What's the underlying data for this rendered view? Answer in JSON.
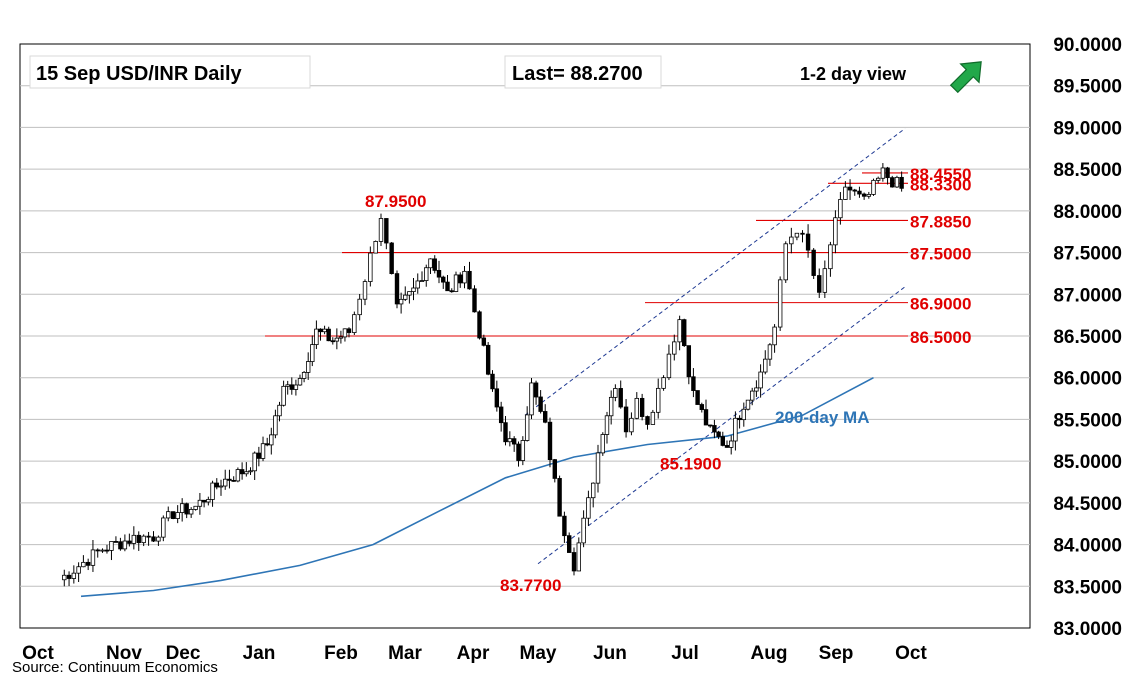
{
  "chart_data": {
    "type": "candlestick",
    "title": "15 Sep  USD/INR  Daily",
    "last_label": "Last= 88.2700",
    "view_label": "1-2 day view",
    "view_direction_icon": "arrow-up-right-icon",
    "source": "Source: Continuum Economics",
    "ylim": [
      83.0,
      90.0
    ],
    "y_ticks": [
      "83.0000",
      "83.5000",
      "84.0000",
      "84.5000",
      "85.0000",
      "85.5000",
      "86.0000",
      "86.5000",
      "87.0000",
      "87.5000",
      "88.0000",
      "88.5000",
      "89.0000",
      "89.5000",
      "90.0000"
    ],
    "x_ticks": [
      "Oct",
      "Nov",
      "Dec",
      "Jan",
      "Feb",
      "Mar",
      "Apr",
      "May",
      "Jun",
      "Jul",
      "Aug",
      "Sep",
      "Oct"
    ],
    "grid": true,
    "levels": [
      {
        "label": "88.4550",
        "value": 88.455
      },
      {
        "label": "88.3300",
        "value": 88.33
      },
      {
        "label": "87.8850",
        "value": 87.885
      },
      {
        "label": "87.5000",
        "value": 87.5
      },
      {
        "label": "86.9000",
        "value": 86.9
      },
      {
        "label": "86.5000",
        "value": 86.5
      }
    ],
    "annotations": [
      {
        "label": "87.9500",
        "value": 87.95
      },
      {
        "label": "85.1900",
        "value": 85.19
      },
      {
        "label": "83.7700",
        "value": 83.77
      }
    ],
    "ma_label": "200-day MA",
    "colors": {
      "up": "#ffffff",
      "down": "#000000",
      "level": "#e00000",
      "ma": "#2e75b6",
      "channel": "#1f3a93",
      "arrow": "#22a84a"
    },
    "anchors": [
      [
        "Oct",
        83.58
      ],
      [
        "Oct",
        83.95
      ],
      [
        "Nov",
        84.08
      ],
      [
        "Nov",
        84.1
      ],
      [
        "Nov",
        84.38
      ],
      [
        "Dec",
        84.45
      ],
      [
        "Dec",
        84.75
      ],
      [
        "Dec",
        84.9
      ],
      [
        "Jan",
        85.2
      ],
      [
        "Jan",
        85.85
      ],
      [
        "Jan",
        86.0
      ],
      [
        "Jan",
        86.55
      ],
      [
        "Jan",
        86.45
      ],
      [
        "Feb",
        86.55
      ],
      [
        "Feb",
        87.2
      ],
      [
        "Feb",
        87.95
      ],
      [
        "Feb",
        86.8
      ],
      [
        "Mar",
        87.05
      ],
      [
        "Mar",
        87.45
      ],
      [
        "Mar",
        87.0
      ],
      [
        "Mar",
        87.3
      ],
      [
        "Apr",
        86.55
      ],
      [
        "Apr",
        85.8
      ],
      [
        "Apr",
        85.3
      ],
      [
        "Apr",
        85.05
      ],
      [
        "Apr",
        85.9
      ],
      [
        "May",
        85.4
      ],
      [
        "May",
        84.4
      ],
      [
        "May",
        83.77
      ],
      [
        "May",
        84.5
      ],
      [
        "May",
        85.4
      ],
      [
        "Jun",
        85.95
      ],
      [
        "Jun",
        85.4
      ],
      [
        "Jun",
        85.7
      ],
      [
        "Jun",
        85.5
      ],
      [
        "Jun",
        85.85
      ],
      [
        "Jun",
        86.3
      ],
      [
        "Jun",
        86.7
      ],
      [
        "Jul",
        85.8
      ],
      [
        "Jul",
        85.35
      ],
      [
        "Jul",
        85.19
      ],
      [
        "Jul",
        85.7
      ],
      [
        "Jul",
        86.05
      ],
      [
        "Aug",
        86.6
      ],
      [
        "Aug",
        87.6
      ],
      [
        "Aug",
        87.8
      ],
      [
        "Aug",
        87.5
      ],
      [
        "Aug",
        86.95
      ],
      [
        "Aug",
        87.6
      ],
      [
        "Sep",
        88.3
      ],
      [
        "Sep",
        88.1
      ],
      [
        "Sep",
        88.455
      ],
      [
        "Sep",
        88.27
      ]
    ],
    "ma_points": [
      [
        "Oct",
        83.38
      ],
      [
        "Nov",
        83.45
      ],
      [
        "Dec",
        83.57
      ],
      [
        "Jan",
        83.75
      ],
      [
        "Feb",
        84.0
      ],
      [
        "Mar",
        84.4
      ],
      [
        "Apr",
        84.8
      ],
      [
        "May",
        85.05
      ],
      [
        "Jun",
        85.2
      ],
      [
        "Jul",
        85.3
      ],
      [
        "Aug",
        85.55
      ],
      [
        "Sep",
        86.0
      ]
    ]
  }
}
